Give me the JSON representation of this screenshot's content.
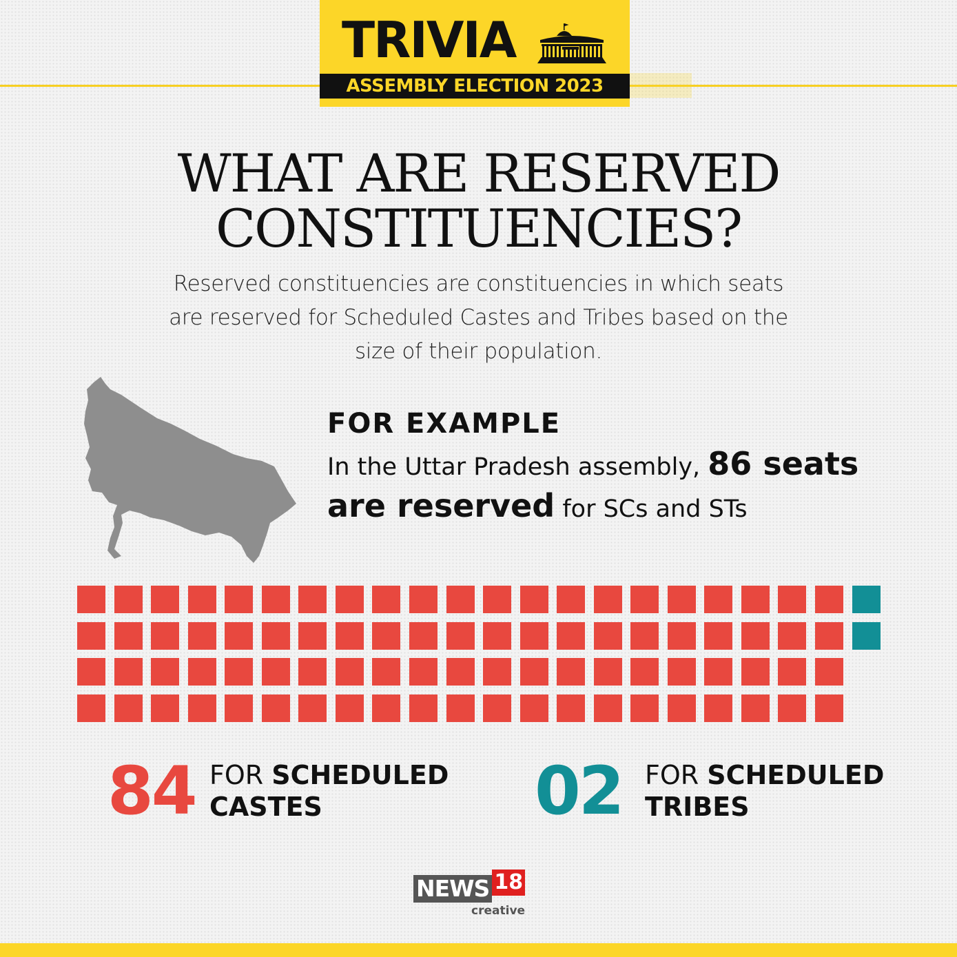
{
  "header": {
    "title": "TRIVIA",
    "subtitle": "ASSEMBLY ELECTION 2023",
    "icon": "parliament-building-icon"
  },
  "heading": {
    "line1": "WHAT ARE RESERVED",
    "line2": "CONSTITUENCIES?"
  },
  "description": "Reserved constituencies are constituencies in which seats are reserved for Scheduled Castes and Tribes based on the size of their population.",
  "example": {
    "heading": "FOR EXAMPLE",
    "text_before": "In the Uttar Pradesh assembly, ",
    "highlight": "86 seats are reserved",
    "text_after": " for SCs and STs",
    "map": "uttar-pradesh-map"
  },
  "chart_data": {
    "type": "waffle",
    "total": 86,
    "series": [
      {
        "name": "SCHEDULED CASTES",
        "value": 84,
        "color": "#e8483f"
      },
      {
        "name": "SCHEDULED TRIBES",
        "value": 2,
        "color": "#128f96"
      }
    ]
  },
  "stats": [
    {
      "number": "84",
      "prefix": "FOR ",
      "bold1": "SCHEDULED",
      "bold2": "CASTES",
      "color": "#e8483f"
    },
    {
      "number": "02",
      "prefix": "FOR ",
      "bold1": "SCHEDULED",
      "bold2": "TRIBES",
      "color": "#128f96"
    }
  ],
  "logo": {
    "news": "NEWS",
    "number": "18",
    "sub": "creative"
  },
  "colors": {
    "accent": "#fcd628",
    "sc": "#e8483f",
    "st": "#128f96"
  }
}
